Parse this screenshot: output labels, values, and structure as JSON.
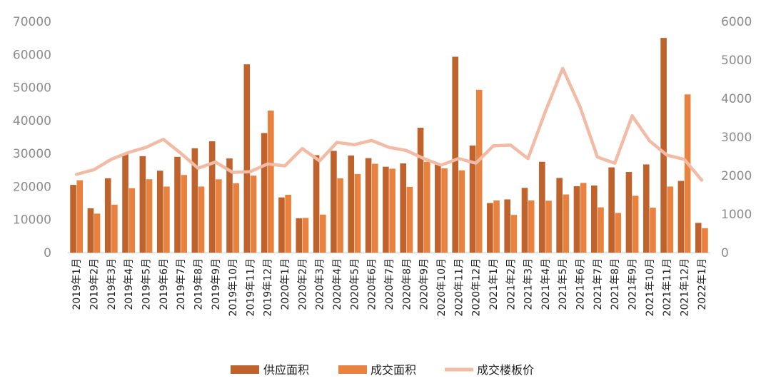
{
  "chart_data": {
    "type": "bar",
    "categories": [
      "2019年1月",
      "2019年2月",
      "2019年3月",
      "2019年4月",
      "2019年5月",
      "2019年6月",
      "2019年7月",
      "2019年8月",
      "2019年9月",
      "2019年10月",
      "2019年11月",
      "2019年12月",
      "2020年1月",
      "2020年2月",
      "2020年3月",
      "2020年4月",
      "2020年5月",
      "2020年6月",
      "2020年7月",
      "2020年8月",
      "2020年9月",
      "2020年10月",
      "2020年11月",
      "2020年12月",
      "2021年1月",
      "2021年2月",
      "2021年3月",
      "2021年4月",
      "2021年5月",
      "2021年6月",
      "2021年7月",
      "2021年8月",
      "2021年9月",
      "2021年10月",
      "2021年11月",
      "2021年12月",
      "2022年1月"
    ],
    "series": [
      {
        "name": "供应面积",
        "type": "bar",
        "axis": "left",
        "color": "#C0622B",
        "values": [
          20500,
          13400,
          22500,
          29800,
          29200,
          24800,
          29000,
          31600,
          33700,
          28500,
          57000,
          36200,
          16700,
          10400,
          29500,
          30800,
          29400,
          28600,
          26000,
          27000,
          37800,
          27000,
          59300,
          32400,
          15000,
          16100,
          19600,
          27500,
          22600,
          20100,
          20300,
          25800,
          24400,
          26700,
          65000,
          21700,
          9000
        ]
      },
      {
        "name": "成交面积",
        "type": "bar",
        "axis": "left",
        "color": "#E8823E",
        "values": [
          21900,
          11800,
          14500,
          19500,
          22200,
          20000,
          23500,
          20000,
          22200,
          21000,
          23300,
          43000,
          17500,
          10500,
          11500,
          22500,
          23800,
          26900,
          25400,
          19900,
          27500,
          25500,
          24900,
          49300,
          15800,
          11400,
          15800,
          15700,
          17600,
          21100,
          13700,
          12000,
          17200,
          13600,
          20000,
          47900,
          7400
        ]
      },
      {
        "name": "成交楼板价",
        "type": "line",
        "axis": "right",
        "color": "#F1BBA5",
        "values": [
          2030,
          2150,
          2420,
          2600,
          2730,
          2940,
          2580,
          2190,
          2350,
          2080,
          2100,
          2300,
          2250,
          2700,
          2380,
          2860,
          2800,
          2910,
          2730,
          2650,
          2440,
          2270,
          2440,
          2320,
          2770,
          2790,
          2440,
          3660,
          4780,
          3780,
          2480,
          2320,
          3550,
          2900,
          2530,
          2420,
          1880
        ]
      }
    ],
    "y_left": {
      "min": 0,
      "max": 70000,
      "ticks": [
        0,
        10000,
        20000,
        30000,
        40000,
        50000,
        60000,
        70000
      ]
    },
    "y_right": {
      "min": 0,
      "max": 6000,
      "ticks": [
        0,
        1000,
        2000,
        3000,
        4000,
        5000,
        6000
      ]
    },
    "title": "",
    "grid": false,
    "legend": "bottom-center"
  }
}
